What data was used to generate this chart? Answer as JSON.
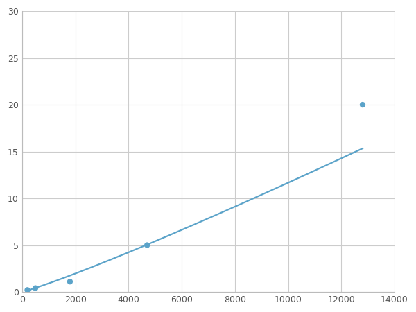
{
  "x_points": [
    200,
    500,
    1800,
    4700,
    12800
  ],
  "y_points": [
    0.2,
    0.4,
    1.1,
    5.0,
    20.0
  ],
  "line_color": "#5ba3c9",
  "marker_color": "#5ba3c9",
  "marker_size": 6,
  "line_width": 1.6,
  "xlim": [
    0,
    14000
  ],
  "ylim": [
    0,
    30
  ],
  "xticks": [
    0,
    2000,
    4000,
    6000,
    8000,
    10000,
    12000,
    14000
  ],
  "yticks": [
    0,
    5,
    10,
    15,
    20,
    25,
    30
  ],
  "grid_color": "#cccccc",
  "grid_linewidth": 0.8,
  "background_color": "#ffffff",
  "figsize": [
    6.0,
    4.5
  ],
  "dpi": 100
}
